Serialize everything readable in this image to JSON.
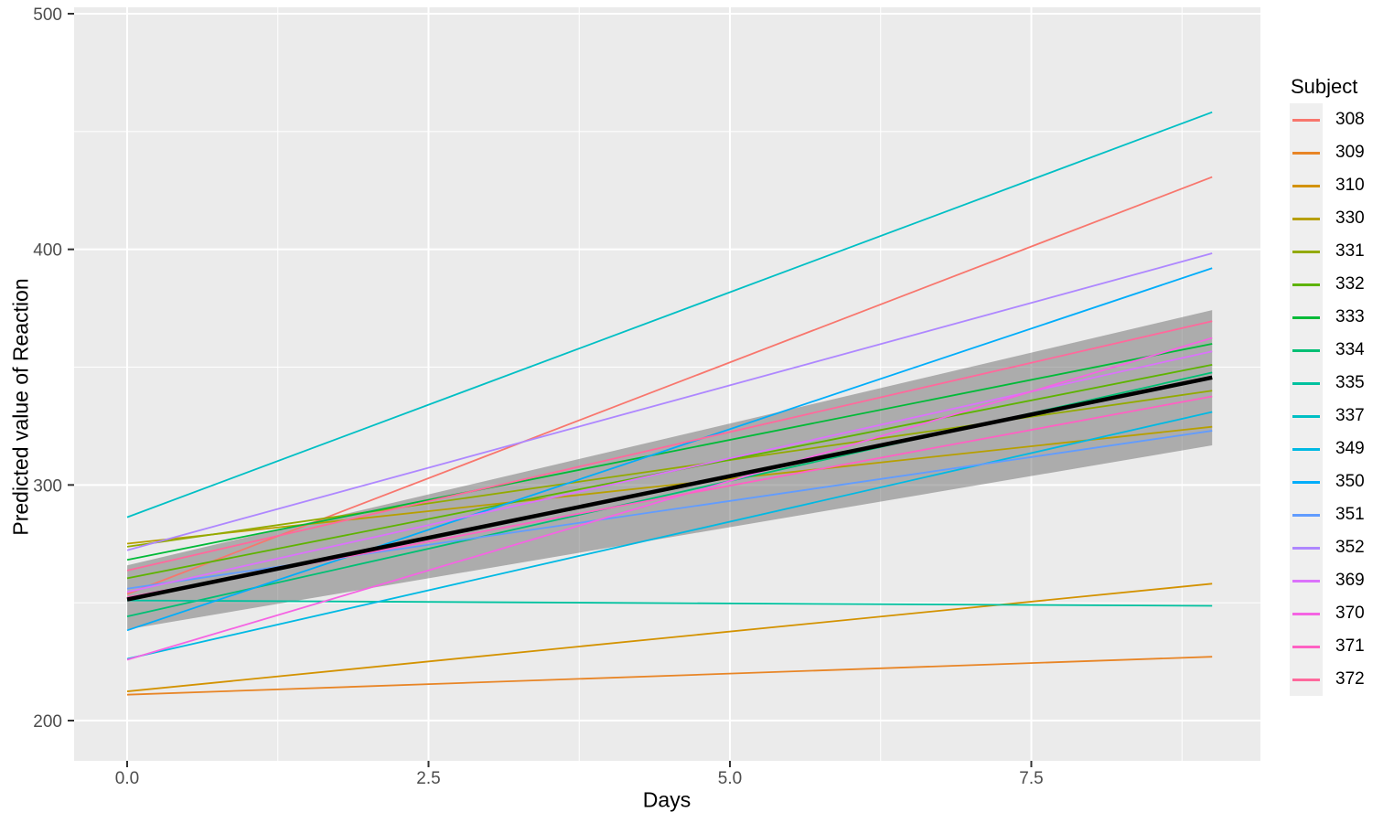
{
  "chart_data": {
    "type": "line",
    "title": "",
    "xlabel": "Days",
    "ylabel": "Predicted value of Reaction",
    "legend_title": "Subject",
    "legend_position": "right",
    "grid": true,
    "panel_background": "#EBEBEB",
    "grid_color": "#FFFFFF",
    "tick_color": "#333333",
    "tick_label_color": "#4D4D4D",
    "x_axis": {
      "ticks": [
        {
          "value": 0,
          "label": "0.0"
        },
        {
          "value": 2.5,
          "label": "2.5"
        },
        {
          "value": 5,
          "label": "5.0"
        },
        {
          "value": 7.5,
          "label": "7.5"
        }
      ],
      "minor": [
        1.25,
        3.75,
        6.25,
        8.75
      ]
    },
    "y_axis": {
      "ticks": [
        {
          "value": 200,
          "label": "200"
        },
        {
          "value": 300,
          "label": "300"
        },
        {
          "value": 400,
          "label": "400"
        },
        {
          "value": 500,
          "label": "500"
        }
      ],
      "minor": [
        250,
        350,
        450
      ]
    },
    "x": [
      0,
      9
    ],
    "series": [
      {
        "name": "308",
        "color": "#F8766D",
        "y": [
          253.7,
          430.7
        ]
      },
      {
        "name": "309",
        "color": "#E88526",
        "y": [
          211.0,
          227.1
        ]
      },
      {
        "name": "310",
        "color": "#D39200",
        "y": [
          212.4,
          258.1
        ]
      },
      {
        "name": "330",
        "color": "#B79F00",
        "y": [
          275.1,
          324.7
        ]
      },
      {
        "name": "331",
        "color": "#93AA00",
        "y": [
          273.8,
          340.0
        ]
      },
      {
        "name": "332",
        "color": "#5EB300",
        "y": [
          260.4,
          351.0
        ]
      },
      {
        "name": "333",
        "color": "#00BA38",
        "y": [
          268.2,
          359.9
        ]
      },
      {
        "name": "334",
        "color": "#00BF74",
        "y": [
          244.2,
          347.7
        ]
      },
      {
        "name": "335",
        "color": "#00C19F",
        "y": [
          251.0,
          248.7
        ]
      },
      {
        "name": "337",
        "color": "#00BFC4",
        "y": [
          286.3,
          458.2
        ]
      },
      {
        "name": "349",
        "color": "#00B9E3",
        "y": [
          226.2,
          331.0
        ]
      },
      {
        "name": "350",
        "color": "#00ADFA",
        "y": [
          238.3,
          392.0
        ]
      },
      {
        "name": "351",
        "color": "#619CFF",
        "y": [
          256.0,
          323.0
        ]
      },
      {
        "name": "352",
        "color": "#AE87FF",
        "y": [
          272.3,
          398.3
        ]
      },
      {
        "name": "369",
        "color": "#DB72FB",
        "y": [
          254.6,
          356.7
        ]
      },
      {
        "name": "370",
        "color": "#F564E3",
        "y": [
          225.8,
          362.4
        ]
      },
      {
        "name": "371",
        "color": "#FF61C3",
        "y": [
          252.3,
          337.6
        ]
      },
      {
        "name": "372",
        "color": "#FF699C",
        "y": [
          263.7,
          369.5
        ]
      }
    ],
    "mean_line": {
      "color": "#000000",
      "y": [
        251.4,
        345.6
      ]
    },
    "confidence_ribbon": {
      "color": "#6E6E6E",
      "opacity": 0.5,
      "upper": [
        265.9,
        374.2
      ],
      "lower": [
        238.7,
        316.8
      ]
    }
  }
}
